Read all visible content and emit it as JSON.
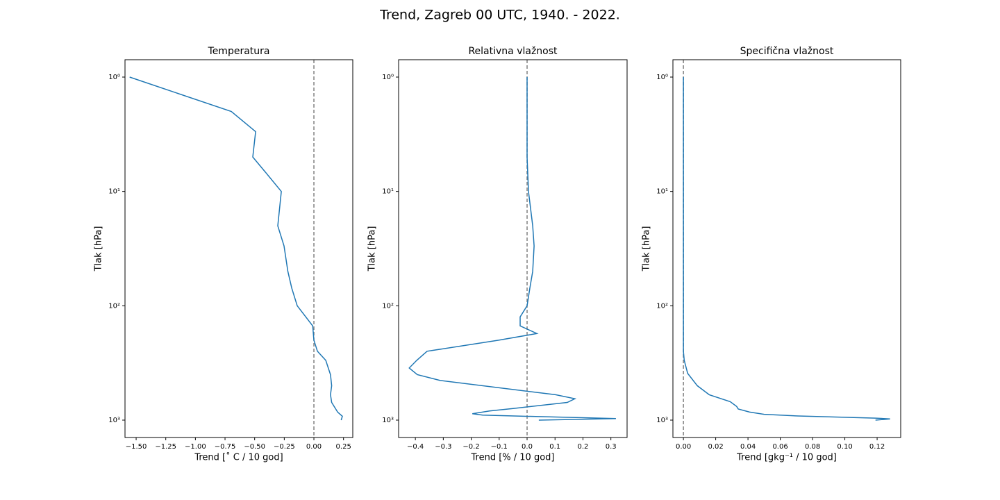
{
  "title": "Trend, Zagreb 00 UTC, 1940. - 2022.",
  "chart_data": [
    {
      "type": "line",
      "title": "Temperatura",
      "x_label": "Trend [˚ C / 10 god]",
      "y_label": "Tlak [hPa]",
      "color": "#1f77b4",
      "reference_line": 0,
      "reference_color": "#808080",
      "log_y": true,
      "y_inverted": true,
      "x": [
        -1.555,
        -0.697,
        -0.492,
        -0.516,
        -0.398,
        -0.275,
        -0.305,
        -0.252,
        -0.22,
        -0.187,
        -0.141,
        -0.01,
        0.0,
        0.03,
        0.1,
        0.14,
        0.15,
        0.14,
        0.15,
        0.2,
        0.24,
        0.23
      ],
      "values": [
        1,
        2,
        3,
        5,
        7,
        10,
        20,
        30,
        50,
        70,
        100,
        150,
        200,
        250,
        300,
        400,
        500,
        600,
        700,
        850,
        925,
        1000
      ],
      "xlim": [
        -1.594,
        0.328
      ],
      "ylim": [
        0.705,
        1419
      ],
      "xticks": [
        {
          "value": -1.5,
          "label": "−1.50"
        },
        {
          "value": -1.25,
          "label": "−1.25"
        },
        {
          "value": -1,
          "label": "−1.00"
        },
        {
          "value": -0.75,
          "label": "−0.75"
        },
        {
          "value": -0.5,
          "label": "−0.50"
        },
        {
          "value": -0.25,
          "label": "−0.25"
        },
        {
          "value": 0,
          "label": "0.00"
        },
        {
          "value": 0.25,
          "label": "0.25"
        }
      ],
      "yticks": [
        {
          "value": 1,
          "label": "10⁰"
        },
        {
          "value": 10,
          "label": "10¹"
        },
        {
          "value": 100,
          "label": "10²"
        },
        {
          "value": 1000,
          "label": "10³"
        }
      ]
    },
    {
      "type": "line",
      "title": "Relativna vlažnost",
      "x_label": "Trend [% / 10 god]",
      "y_label": "Tlak [hPa]",
      "color": "#1f77b4",
      "reference_line": 0,
      "reference_color": "#808080",
      "log_y": true,
      "y_inverted": true,
      "x": [
        0.0,
        0.0,
        0.005,
        0.02,
        0.025,
        0.02,
        0.01,
        0.0,
        -0.025,
        -0.025,
        0.035,
        -0.102,
        -0.358,
        -0.395,
        -0.422,
        -0.393,
        -0.311,
        0.102,
        0.171,
        0.144,
        -0.047,
        -0.134,
        -0.196,
        -0.159,
        0.318,
        0.042
      ],
      "values": [
        1,
        5,
        10,
        20,
        30,
        50,
        70,
        100,
        125,
        150,
        175,
        200,
        250,
        300,
        350,
        400,
        450,
        600,
        650,
        700,
        790,
        830,
        880,
        905,
        970,
        1000
      ],
      "xlim": [
        -0.46,
        0.358
      ],
      "ylim": [
        0.705,
        1419
      ],
      "xticks": [
        {
          "value": -0.4,
          "label": "−0.4"
        },
        {
          "value": -0.3,
          "label": "−0.3"
        },
        {
          "value": -0.2,
          "label": "−0.2"
        },
        {
          "value": -0.1,
          "label": "−0.1"
        },
        {
          "value": 0,
          "label": "0.0"
        },
        0.1,
        0.2,
        0.3
      ],
      "yticks": [
        {
          "value": 1,
          "label": "10⁰"
        },
        {
          "value": 10,
          "label": "10¹"
        },
        {
          "value": 100,
          "label": "10²"
        },
        {
          "value": 1000,
          "label": "10³"
        }
      ]
    },
    {
      "type": "line",
      "title": "Specifična vlažnost",
      "x_label": "Trend [gkg⁻¹ / 10 god]",
      "y_label": "Tlak [hPa]",
      "color": "#1f77b4",
      "reference_line": 0,
      "reference_color": "#808080",
      "log_y": true,
      "y_inverted": true,
      "x": [
        0.0,
        0.0,
        0.0,
        0.0,
        0.0005,
        0.0026,
        0.0086,
        0.016,
        0.029,
        0.033,
        0.034,
        0.041,
        0.05,
        0.071,
        0.119,
        0.128,
        0.119
      ],
      "values": [
        1,
        10,
        100,
        250,
        300,
        390,
        500,
        600,
        690,
        760,
        800,
        850,
        890,
        920,
        960,
        975,
        1000
      ],
      "xlim": [
        -0.0065,
        0.1346
      ],
      "ylim": [
        0.705,
        1419
      ],
      "xticks": [
        {
          "value": 0,
          "label": "0.00"
        },
        {
          "value": 0.02,
          "label": "0.02"
        },
        {
          "value": 0.04,
          "label": "0.04"
        },
        {
          "value": 0.06,
          "label": "0.06"
        },
        {
          "value": 0.08,
          "label": "0.08"
        },
        {
          "value": 0.1,
          "label": "0.10"
        },
        {
          "value": 0.12,
          "label": "0.12"
        }
      ],
      "yticks": [
        {
          "value": 1,
          "label": "10⁰"
        },
        {
          "value": 10,
          "label": "10¹"
        },
        {
          "value": 100,
          "label": "10²"
        },
        {
          "value": 1000,
          "label": "10³"
        }
      ]
    }
  ]
}
